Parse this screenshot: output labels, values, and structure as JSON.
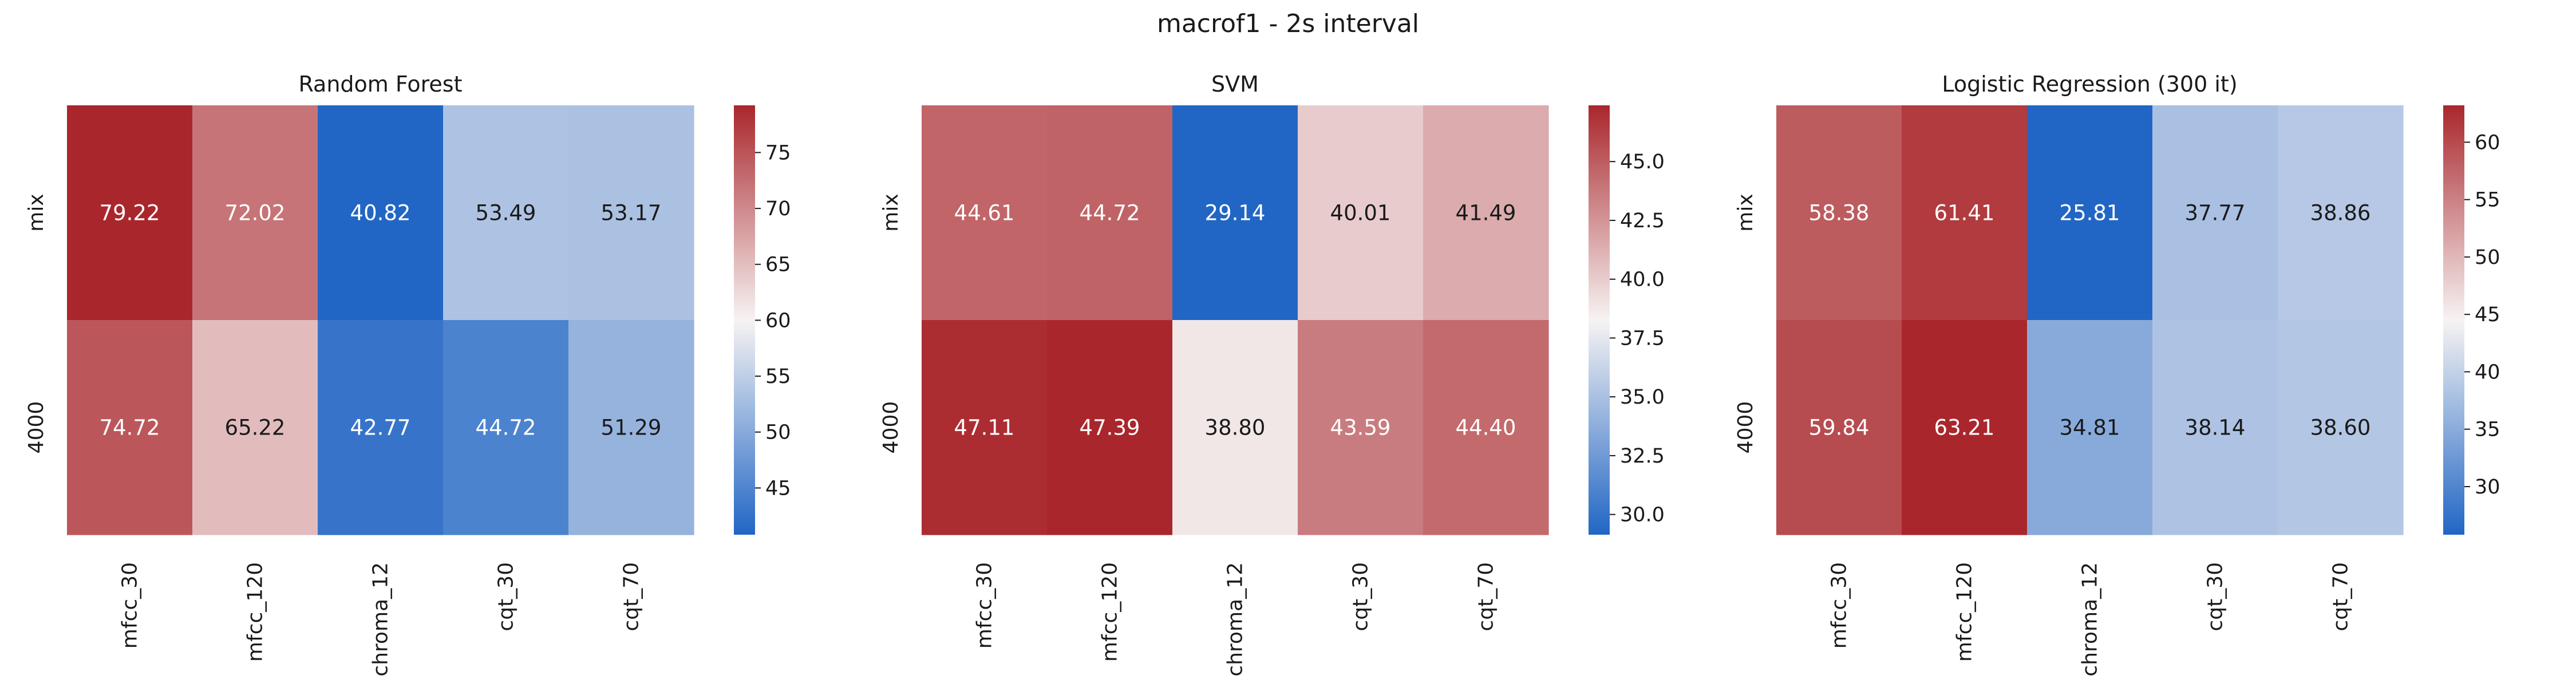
{
  "figure": {
    "title": "macrof1 - 2s interval"
  },
  "colormap": {
    "low": "#2166c4",
    "mid": "#f7f3f3",
    "high": "#a9272c"
  },
  "chart_data": [
    {
      "type": "heatmap",
      "title": "Random Forest",
      "x_labels": [
        "mfcc_30",
        "mfcc_120",
        "chroma_12",
        "cqt_30",
        "cqt_70"
      ],
      "y_labels": [
        "mix",
        "4000"
      ],
      "values": [
        [
          79.22,
          72.02,
          40.82,
          53.49,
          53.17
        ],
        [
          74.72,
          65.22,
          42.77,
          44.72,
          51.29
        ]
      ],
      "value_labels": [
        [
          "79.22",
          "72.02",
          "40.82",
          "53.49",
          "53.17"
        ],
        [
          "74.72",
          "65.22",
          "42.77",
          "44.72",
          "51.29"
        ]
      ],
      "colorbar": {
        "range": [
          40.82,
          79.22
        ],
        "ticks": [
          45,
          50,
          55,
          60,
          65,
          70,
          75
        ],
        "tick_labels": [
          "45",
          "50",
          "55",
          "60",
          "65",
          "70",
          "75"
        ]
      }
    },
    {
      "type": "heatmap",
      "title": "SVM",
      "x_labels": [
        "mfcc_30",
        "mfcc_120",
        "chroma_12",
        "cqt_30",
        "cqt_70"
      ],
      "y_labels": [
        "mix",
        "4000"
      ],
      "values": [
        [
          44.61,
          44.72,
          29.14,
          40.01,
          41.49
        ],
        [
          47.11,
          47.39,
          38.8,
          43.59,
          44.4
        ]
      ],
      "value_labels": [
        [
          "44.61",
          "44.72",
          "29.14",
          "40.01",
          "41.49"
        ],
        [
          "47.11",
          "47.39",
          "38.80",
          "43.59",
          "44.40"
        ]
      ],
      "colorbar": {
        "range": [
          29.14,
          47.39
        ],
        "ticks": [
          30.0,
          32.5,
          35.0,
          37.5,
          40.0,
          42.5,
          45.0
        ],
        "tick_labels": [
          "30.0",
          "32.5",
          "35.0",
          "37.5",
          "40.0",
          "42.5",
          "45.0"
        ]
      }
    },
    {
      "type": "heatmap",
      "title": "Logistic Regression (300 it)",
      "x_labels": [
        "mfcc_30",
        "mfcc_120",
        "chroma_12",
        "cqt_30",
        "cqt_70"
      ],
      "y_labels": [
        "mix",
        "4000"
      ],
      "values": [
        [
          58.38,
          61.41,
          25.81,
          37.77,
          38.86
        ],
        [
          59.84,
          63.21,
          34.81,
          38.14,
          38.6
        ]
      ],
      "value_labels": [
        [
          "58.38",
          "61.41",
          "25.81",
          "37.77",
          "38.86"
        ],
        [
          "59.84",
          "63.21",
          "34.81",
          "38.14",
          "38.60"
        ]
      ],
      "colorbar": {
        "range": [
          25.81,
          63.21
        ],
        "ticks": [
          30,
          35,
          40,
          45,
          50,
          55,
          60
        ],
        "tick_labels": [
          "30",
          "35",
          "40",
          "45",
          "50",
          "55",
          "60"
        ]
      }
    }
  ]
}
